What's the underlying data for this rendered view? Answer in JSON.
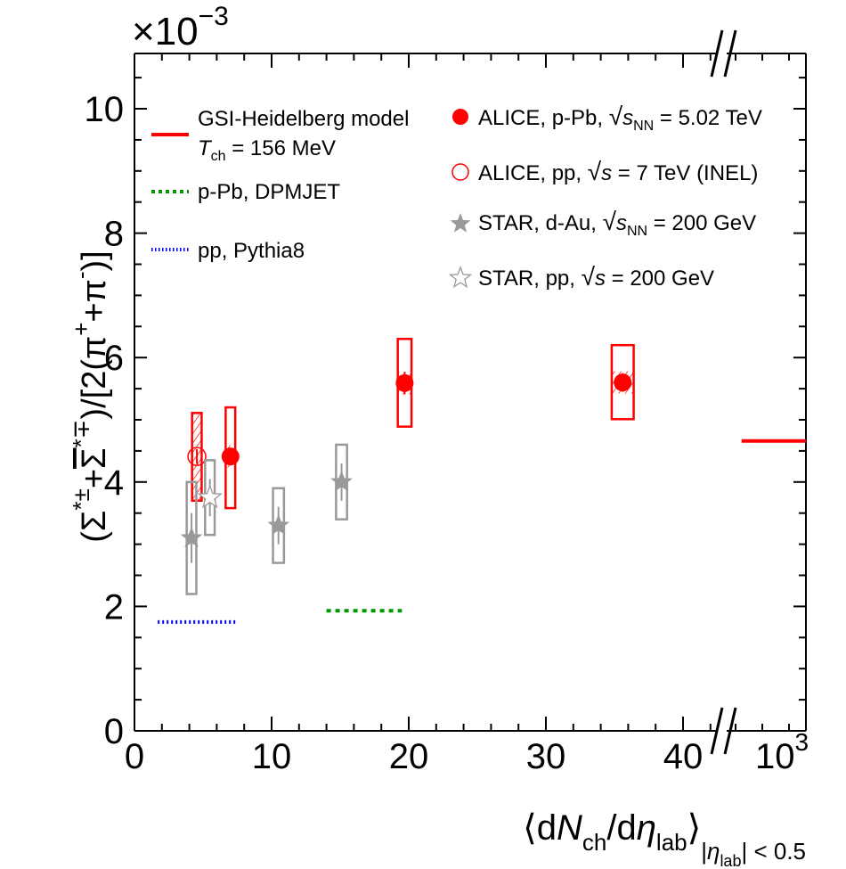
{
  "chart_data": {
    "type": "scatter",
    "title": "",
    "multiplier_label": "×10",
    "multiplier_exponent": "−3",
    "ylabel": {
      "parts": [
        "(Σ",
        "*±",
        "+",
        "Σ",
        "*∓",
        ")/[2(π",
        "+",
        "+π",
        "-",
        ")]"
      ]
    },
    "xlabel": {
      "open": "⟨d",
      "N": "N",
      "ch": "ch",
      "slash_d": "/d",
      "eta": "η",
      "lab": "lab",
      "close": "⟩",
      "range_pre": "|",
      "range_eta": "η",
      "range_lab": "lab",
      "range_post": "| < 0.5"
    },
    "ylim": [
      0,
      11
    ],
    "xlim": [
      0,
      49
    ],
    "x_break": "//",
    "yticks": [
      0,
      2,
      4,
      6,
      8,
      10
    ],
    "ytick_labels": [
      "0",
      "2",
      "4",
      "6",
      "8",
      "10"
    ],
    "xticks": [
      0,
      10,
      20,
      30,
      40
    ],
    "xtick_labels": [
      "0",
      "10",
      "20",
      "30",
      "40"
    ],
    "x_far_label": "10",
    "x_far_exponent": "3",
    "grid": false,
    "legend_left": [
      {
        "name": "GSI-Heidelberg model",
        "line2_T": "T",
        "line2_sub": "ch",
        "line2_rest": " = 156 MeV",
        "style": "solid",
        "color": "#ff0000"
      },
      {
        "name": "p-Pb, DPMJET",
        "style": "dashed",
        "color": "#009900"
      },
      {
        "name": "pp, Pythia8",
        "style": "dotted",
        "color": "#0000ff"
      }
    ],
    "legend_right": [
      {
        "pre": "ALICE, p-Pb, ",
        "s": "s",
        "sub": "NN",
        "post": " = 5.02 TeV",
        "marker": "filled-circle",
        "color": "#ff0000"
      },
      {
        "pre": "ALICE, pp, ",
        "s": "s",
        "sub": "",
        "post": " = 7 TeV (INEL)",
        "marker": "open-circle",
        "color": "#ff0000"
      },
      {
        "pre": "STAR, d-Au, ",
        "s": "s",
        "sub": "NN",
        "post": " = 200 GeV",
        "marker": "filled-star",
        "color": "#999999"
      },
      {
        "pre": "STAR, pp, ",
        "s": "s",
        "sub": "",
        "post": " = 200 GeV",
        "marker": "open-star",
        "color": "#999999"
      }
    ],
    "series": [
      {
        "name": "ALICE, p-Pb, sNN = 5.02 TeV",
        "marker": "filled-circle",
        "color": "#ff0000",
        "points": [
          {
            "x": 7.0,
            "y": 4.41,
            "stat": 0.12,
            "sys_hi": 5.2,
            "sys_lo": 3.58,
            "box_halfwidth": 0.35,
            "hatched": true
          },
          {
            "x": 19.7,
            "y": 5.59,
            "stat": 0.18,
            "sys_hi": 6.3,
            "sys_lo": 4.89,
            "box_halfwidth": 0.5,
            "hatched": true
          },
          {
            "x": 35.6,
            "y": 5.6,
            "stat": 0.15,
            "sys_hi": 6.2,
            "sys_lo": 5.01,
            "box_halfwidth": 0.8,
            "hatched": true
          }
        ]
      },
      {
        "name": "ALICE, pp, s = 7 TeV (INEL)",
        "marker": "open-circle",
        "color": "#ff0000",
        "points": [
          {
            "x": 4.55,
            "y": 4.41,
            "stat": 0.12,
            "sys_hi": 5.11,
            "sys_lo": 3.7,
            "box_halfwidth": 0.35,
            "hatched": true
          }
        ]
      },
      {
        "name": "STAR, d-Au, sNN = 200 GeV",
        "marker": "filled-star",
        "color": "#999999",
        "points": [
          {
            "x": 4.16,
            "y": 3.1,
            "stat": 0.4,
            "sys_hi": 4.0,
            "sys_lo": 2.2,
            "box_halfwidth": 0.35
          },
          {
            "x": 10.5,
            "y": 3.3,
            "stat": 0.3,
            "sys_hi": 3.9,
            "sys_lo": 2.7,
            "box_halfwidth": 0.4
          },
          {
            "x": 15.1,
            "y": 4.0,
            "stat": 0.3,
            "sys_hi": 4.6,
            "sys_lo": 3.4,
            "box_halfwidth": 0.4
          }
        ]
      },
      {
        "name": "STAR, pp, s = 200 GeV",
        "marker": "open-star",
        "color": "#999999",
        "points": [
          {
            "x": 5.5,
            "y": 3.75,
            "stat": 0.3,
            "sys_hi": 4.35,
            "sys_lo": 3.15,
            "box_halfwidth": 0.35
          }
        ]
      }
    ],
    "model_lines": [
      {
        "name": "GSI-Heidelberg model",
        "x": [
          43.7,
          49
        ],
        "y": 4.66,
        "style": "solid",
        "color": "#ff0000"
      },
      {
        "name": "p-Pb, DPMJET",
        "x": [
          14.0,
          19.5
        ],
        "y": 1.93,
        "style": "dashed",
        "color": "#009900"
      },
      {
        "name": "pp, Pythia8",
        "x": [
          1.7,
          7.5
        ],
        "y": 1.75,
        "style": "dotted",
        "color": "#0000ff"
      }
    ]
  }
}
